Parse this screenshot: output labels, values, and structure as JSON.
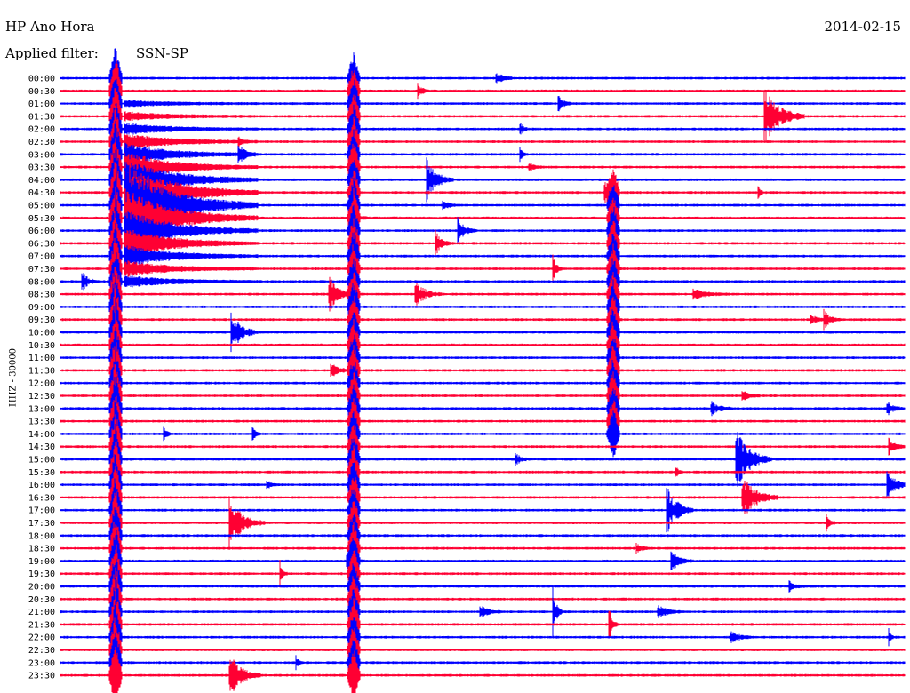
{
  "header": {
    "station": "HP Ano Hora",
    "date": "2014-02-15",
    "filter_label": "Applied filter:",
    "filter_value": "SSN-SP"
  },
  "colors": {
    "odd": "#0000ff",
    "even": "#ff0033"
  },
  "chart_data": {
    "type": "line",
    "title": "",
    "ylabel": "HHZ - 30000",
    "xlabel": "",
    "row_labels": [
      "00:00",
      "00:30",
      "01:00",
      "01:30",
      "02:00",
      "02:30",
      "03:00",
      "03:30",
      "04:00",
      "04:30",
      "05:00",
      "05:30",
      "06:00",
      "06:30",
      "07:00",
      "07:30",
      "08:00",
      "08:30",
      "09:00",
      "09:30",
      "10:00",
      "10:30",
      "11:00",
      "11:30",
      "12:00",
      "12:30",
      "13:00",
      "13:30",
      "14:00",
      "14:30",
      "15:00",
      "15:30",
      "16:00",
      "16:30",
      "17:00",
      "17:30",
      "18:00",
      "18:30",
      "19:00",
      "19:30",
      "20:00",
      "20:30",
      "21:00",
      "21:30",
      "22:00",
      "22:30",
      "23:00",
      "23:30"
    ],
    "grid": false,
    "legend": "none"
  }
}
